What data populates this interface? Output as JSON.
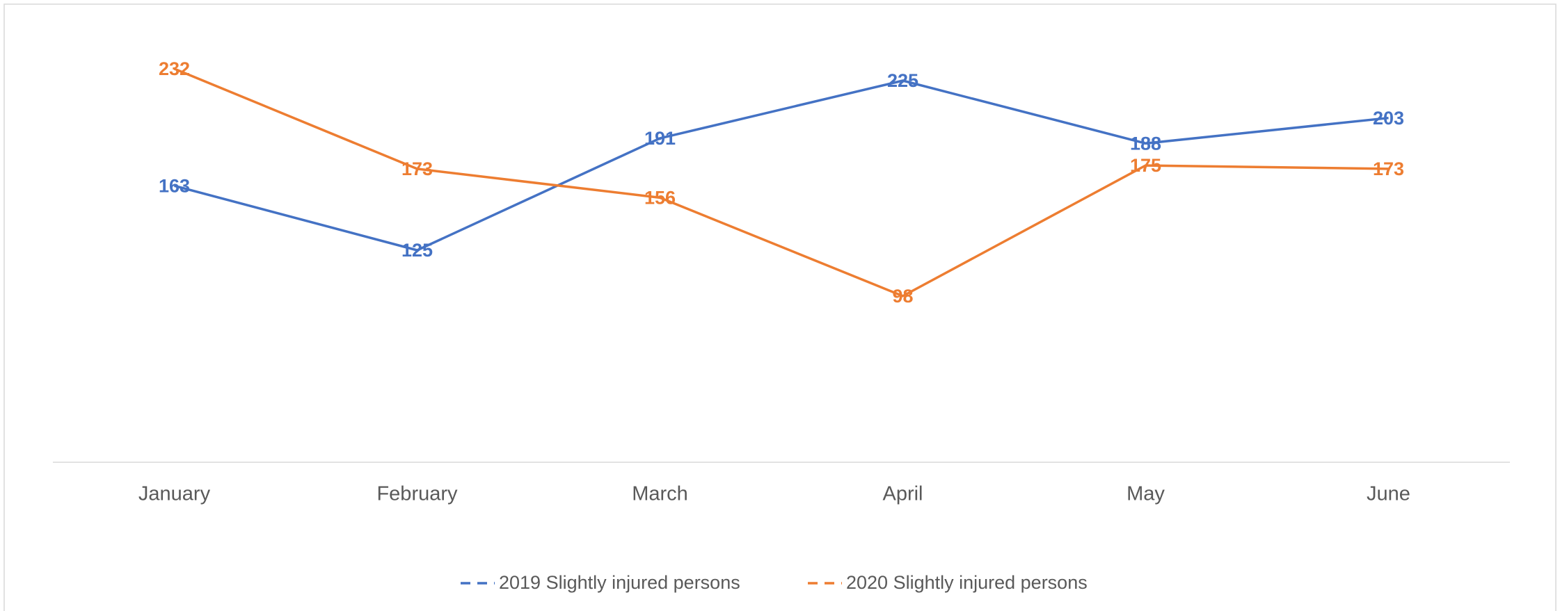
{
  "chart_data": {
    "type": "line",
    "categories": [
      "January",
      "February",
      "March",
      "April",
      "May",
      "June"
    ],
    "series": [
      {
        "name": "2019 Slightly injured persons",
        "color": "#4472c4",
        "values": [
          163,
          125,
          191,
          225,
          188,
          203
        ]
      },
      {
        "name": "2020 Slightly injured persons",
        "color": "#ed7d31",
        "values": [
          232,
          173,
          156,
          98,
          175,
          173
        ]
      }
    ],
    "ylim": [
      0,
      250
    ]
  }
}
